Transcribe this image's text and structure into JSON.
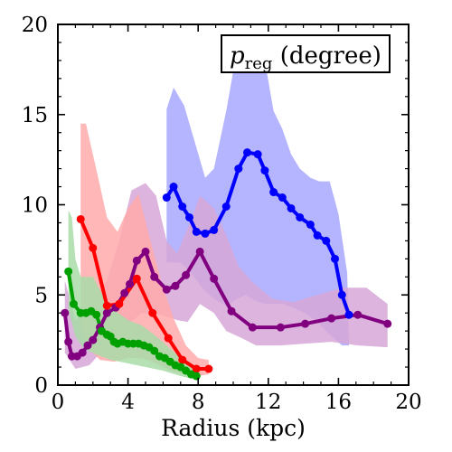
{
  "chart_data": {
    "type": "line",
    "title": "",
    "xlabel": "Radius (kpc)",
    "ylabel": "",
    "xlim": [
      0,
      20
    ],
    "ylim": [
      0,
      20
    ],
    "xticks": [
      0,
      4,
      8,
      12,
      16,
      20
    ],
    "yticks": [
      0,
      5,
      10,
      15,
      20
    ],
    "annotation": {
      "main": "p",
      "subscript": "reg",
      "suffix": " (degree)"
    },
    "series": [
      {
        "color": "#0000ff",
        "band_color": "#a8a8ff",
        "points": [
          [
            6.2,
            10.4
          ],
          [
            6.6,
            11.0
          ],
          [
            7.1,
            9.9
          ],
          [
            7.5,
            9.3
          ],
          [
            7.9,
            8.5
          ],
          [
            8.4,
            8.4
          ],
          [
            8.9,
            8.6
          ],
          [
            9.6,
            9.9
          ],
          [
            10.3,
            12.0
          ],
          [
            10.8,
            12.9
          ],
          [
            11.4,
            12.8
          ],
          [
            11.8,
            11.9
          ],
          [
            12.3,
            10.7
          ],
          [
            12.8,
            10.4
          ],
          [
            13.3,
            9.8
          ],
          [
            13.8,
            9.3
          ],
          [
            14.4,
            8.9
          ],
          [
            14.8,
            8.3
          ],
          [
            15.3,
            8.0
          ],
          [
            15.8,
            7.0
          ],
          [
            16.2,
            5.0
          ],
          [
            16.6,
            3.9
          ]
        ],
        "band_lower": [
          [
            6.2,
            6.8
          ],
          [
            7.0,
            6.8
          ],
          [
            7.6,
            6.2
          ],
          [
            8.3,
            5.3
          ],
          [
            9.0,
            4.7
          ],
          [
            9.6,
            4.4
          ],
          [
            10.1,
            4.7
          ],
          [
            10.7,
            5.0
          ],
          [
            11.2,
            4.7
          ],
          [
            11.8,
            4.5
          ],
          [
            12.3,
            4.5
          ],
          [
            12.8,
            4.5
          ],
          [
            13.4,
            4.3
          ],
          [
            14.1,
            4.0
          ],
          [
            14.8,
            3.5
          ],
          [
            15.5,
            2.8
          ],
          [
            16.2,
            2.2
          ],
          [
            16.6,
            2.2
          ]
        ],
        "band_upper": [
          [
            6.2,
            15.3
          ],
          [
            6.6,
            16.5
          ],
          [
            7.2,
            15.5
          ],
          [
            7.8,
            13.5
          ],
          [
            8.4,
            11.5
          ],
          [
            8.9,
            12.0
          ],
          [
            9.6,
            15.2
          ],
          [
            10.2,
            18.5
          ],
          [
            10.8,
            19.2
          ],
          [
            11.4,
            19.0
          ],
          [
            11.8,
            18.0
          ],
          [
            12.3,
            15.2
          ],
          [
            12.8,
            14.2
          ],
          [
            13.3,
            12.8
          ],
          [
            13.8,
            12.0
          ],
          [
            14.4,
            11.5
          ],
          [
            14.9,
            11.3
          ],
          [
            15.5,
            11.3
          ],
          [
            16.0,
            9.5
          ],
          [
            16.5,
            6.2
          ]
        ]
      },
      {
        "color": "#800080",
        "band_color": "#d7a7d7",
        "points": [
          [
            0.4,
            4.0
          ],
          [
            0.6,
            2.4
          ],
          [
            0.8,
            1.6
          ],
          [
            1.1,
            1.6
          ],
          [
            1.4,
            1.8
          ],
          [
            1.7,
            2.2
          ],
          [
            2.0,
            2.5
          ],
          [
            2.4,
            3.2
          ],
          [
            2.8,
            4.0
          ],
          [
            3.3,
            4.3
          ],
          [
            3.8,
            5.1
          ],
          [
            4.1,
            5.6
          ],
          [
            4.5,
            6.9
          ],
          [
            5.0,
            7.4
          ],
          [
            5.5,
            6.0
          ],
          [
            6.2,
            5.3
          ],
          [
            6.7,
            5.5
          ],
          [
            7.3,
            6.1
          ],
          [
            8.1,
            7.4
          ],
          [
            8.9,
            5.9
          ],
          [
            9.9,
            4.1
          ],
          [
            11.1,
            3.2
          ],
          [
            12.7,
            3.2
          ],
          [
            14.1,
            3.4
          ],
          [
            15.6,
            3.7
          ],
          [
            17.1,
            3.9
          ],
          [
            18.8,
            3.4
          ]
        ],
        "band_lower": [
          [
            0.4,
            1.8
          ],
          [
            1.0,
            0.9
          ],
          [
            1.8,
            1.1
          ],
          [
            2.8,
            2.2
          ],
          [
            3.8,
            3.2
          ],
          [
            4.8,
            4.0
          ],
          [
            5.5,
            4.0
          ],
          [
            6.2,
            3.8
          ],
          [
            6.8,
            3.6
          ],
          [
            7.4,
            3.5
          ],
          [
            8.1,
            4.5
          ],
          [
            8.9,
            4.0
          ],
          [
            9.6,
            3.0
          ],
          [
            10.5,
            2.6
          ],
          [
            11.3,
            2.2
          ],
          [
            12.7,
            2.2
          ],
          [
            14.1,
            2.3
          ],
          [
            15.6,
            2.4
          ],
          [
            17.1,
            2.2
          ],
          [
            18.8,
            2.1
          ]
        ],
        "band_upper": [
          [
            0.4,
            5.8
          ],
          [
            1.0,
            3.6
          ],
          [
            1.8,
            4.5
          ],
          [
            2.8,
            5.8
          ],
          [
            3.5,
            8.0
          ],
          [
            4.2,
            10.8
          ],
          [
            5.0,
            11.2
          ],
          [
            5.6,
            10.5
          ],
          [
            6.2,
            8.0
          ],
          [
            6.8,
            7.3
          ],
          [
            7.4,
            8.7
          ],
          [
            8.1,
            10.5
          ],
          [
            8.9,
            9.8
          ],
          [
            9.6,
            8.3
          ],
          [
            10.3,
            6.6
          ],
          [
            11.1,
            5.7
          ],
          [
            12.2,
            4.8
          ],
          [
            13.4,
            4.6
          ],
          [
            14.8,
            5.0
          ],
          [
            16.2,
            5.4
          ],
          [
            17.6,
            5.4
          ],
          [
            18.8,
            4.5
          ]
        ]
      },
      {
        "color": "#ff0000",
        "band_color": "#ffaaaa",
        "points": [
          [
            1.3,
            9.2
          ],
          [
            2.0,
            7.6
          ],
          [
            2.8,
            4.4
          ],
          [
            3.5,
            4.5
          ],
          [
            4.5,
            5.9
          ],
          [
            5.4,
            4.0
          ],
          [
            6.3,
            2.6
          ],
          [
            7.1,
            1.4
          ],
          [
            7.9,
            0.9
          ],
          [
            8.6,
            0.9
          ]
        ],
        "band_lower": [
          [
            1.3,
            3.0
          ],
          [
            1.8,
            2.0
          ],
          [
            2.4,
            1.4
          ],
          [
            3.2,
            1.3
          ],
          [
            4.0,
            1.5
          ],
          [
            4.8,
            1.5
          ],
          [
            5.6,
            1.2
          ],
          [
            6.4,
            0.8
          ],
          [
            7.2,
            0.6
          ],
          [
            8.0,
            0.5
          ],
          [
            8.6,
            0.6
          ]
        ],
        "band_upper": [
          [
            1.3,
            14.5
          ],
          [
            1.6,
            14.5
          ],
          [
            2.3,
            11.5
          ],
          [
            2.8,
            9.3
          ],
          [
            3.4,
            8.5
          ],
          [
            4.0,
            9.8
          ],
          [
            4.6,
            10.6
          ],
          [
            5.2,
            8.3
          ],
          [
            5.9,
            5.7
          ],
          [
            6.6,
            3.7
          ],
          [
            7.3,
            2.2
          ],
          [
            8.0,
            1.5
          ],
          [
            8.6,
            1.4
          ]
        ]
      },
      {
        "color": "#00a000",
        "band_color": "#a8dca8",
        "points": [
          [
            0.6,
            6.3
          ],
          [
            0.9,
            4.5
          ],
          [
            1.3,
            4.0
          ],
          [
            1.6,
            4.0
          ],
          [
            1.9,
            4.1
          ],
          [
            2.2,
            3.9
          ],
          [
            2.5,
            3.0
          ],
          [
            2.8,
            2.8
          ],
          [
            3.0,
            2.7
          ],
          [
            3.2,
            2.4
          ],
          [
            3.4,
            2.3
          ],
          [
            3.7,
            2.4
          ],
          [
            4.0,
            2.3
          ],
          [
            4.3,
            2.3
          ],
          [
            4.6,
            2.3
          ],
          [
            4.9,
            2.2
          ],
          [
            5.2,
            2.1
          ],
          [
            5.5,
            1.9
          ],
          [
            5.8,
            1.6
          ],
          [
            6.1,
            1.5
          ],
          [
            6.4,
            1.3
          ],
          [
            6.7,
            1.1
          ],
          [
            7.0,
            1.0
          ],
          [
            7.3,
            0.8
          ],
          [
            7.6,
            0.6
          ],
          [
            7.9,
            0.5
          ]
        ],
        "band_lower": [
          [
            0.6,
            4.2
          ],
          [
            1.0,
            2.7
          ],
          [
            1.5,
            2.0
          ],
          [
            2.2,
            1.7
          ],
          [
            3.0,
            1.4
          ],
          [
            4.0,
            1.2
          ],
          [
            5.0,
            1.0
          ],
          [
            6.0,
            0.8
          ],
          [
            7.0,
            0.5
          ],
          [
            7.9,
            0.3
          ]
        ],
        "band_upper": [
          [
            0.6,
            9.7
          ],
          [
            0.8,
            9.3
          ],
          [
            1.0,
            7.0
          ],
          [
            1.3,
            6.0
          ],
          [
            2.0,
            6.0
          ],
          [
            2.6,
            4.9
          ],
          [
            3.3,
            4.1
          ],
          [
            4.0,
            3.6
          ],
          [
            4.8,
            3.3
          ],
          [
            5.5,
            2.8
          ],
          [
            6.2,
            2.2
          ],
          [
            7.0,
            1.5
          ],
          [
            7.9,
            0.9
          ]
        ]
      }
    ]
  }
}
